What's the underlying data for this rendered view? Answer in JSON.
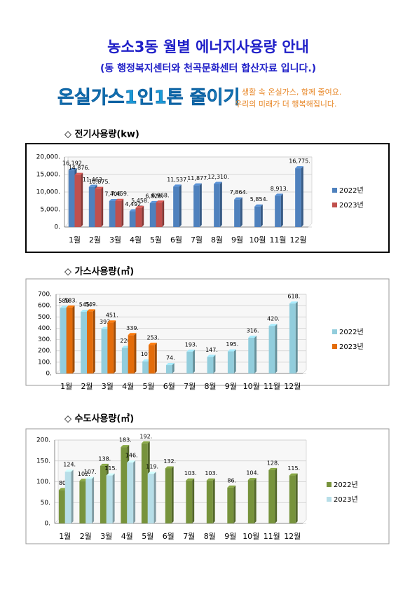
{
  "title": "농소3동 월별 에너지사용량 안내",
  "subtitle": "(동 행정복지센터와 천곡문화센터 합산자료 입니다.)",
  "banner": {
    "slogan": "온실가스1인1톤 줄이기",
    "line1": "생활 속 온실가스, 함께 줄여요.",
    "line2": "우리의 미래가 더 행복해집니다."
  },
  "chart_data": [
    {
      "type": "bar",
      "title": "◇ 전기사용량(kw)",
      "grid": true,
      "legend": "right",
      "categories": [
        "1월",
        "2월",
        "3월",
        "4월",
        "5월",
        "6월",
        "7월",
        "8월",
        "9월",
        "10월",
        "11월",
        "12월"
      ],
      "ylim": [
        0,
        20000
      ],
      "yticks": [
        {
          "value": 0,
          "label": "0."
        },
        {
          "value": 5000,
          "label": "5,000."
        },
        {
          "value": 10000,
          "label": "10,000."
        },
        {
          "value": 15000,
          "label": "15,000."
        },
        {
          "value": 20000,
          "label": "20,000."
        }
      ],
      "series": [
        {
          "name": "2022년",
          "color": "#4f81bd",
          "values": [
            16192,
            11463,
            7406,
            4492,
            6826,
            11537,
            11877,
            12310,
            7864,
            5854,
            8913,
            16775
          ],
          "value_labels": [
            "16,192.",
            "11,463.",
            "7,406.",
            "4,492.",
            "6,826.",
            "11,537.",
            "11,877.",
            "12,310.",
            "7,864.",
            "5,854.",
            "8,913.",
            "16,775."
          ]
        },
        {
          "name": "2023년",
          "color": "#c0504d",
          "values": [
            14876,
            10875,
            7459,
            5458,
            6968,
            null,
            null,
            null,
            null,
            null,
            null,
            null
          ],
          "value_labels": [
            "14,876.",
            "10,875.",
            "7,459.",
            "5,458.",
            "6,968.",
            null,
            null,
            null,
            null,
            null,
            null,
            null
          ]
        }
      ]
    },
    {
      "type": "bar",
      "title": "◇ 가스사용량(㎥)",
      "grid": true,
      "legend": "right",
      "categories": [
        "1월",
        "2월",
        "3월",
        "4월",
        "5월",
        "6월",
        "7월",
        "8월",
        "9월",
        "10월",
        "11월",
        "12월"
      ],
      "ylim": [
        0,
        700
      ],
      "yticks": [
        {
          "value": 0,
          "label": "0."
        },
        {
          "value": 100,
          "label": "100."
        },
        {
          "value": 200,
          "label": "200."
        },
        {
          "value": 300,
          "label": "300."
        },
        {
          "value": 400,
          "label": "400."
        },
        {
          "value": 500,
          "label": "500."
        },
        {
          "value": 600,
          "label": "600."
        },
        {
          "value": 700,
          "label": "700."
        }
      ],
      "series": [
        {
          "name": "2022년",
          "color": "#92cddc",
          "values": [
            580,
            545,
            393,
            226,
            107,
            74,
            193,
            147,
            195,
            316,
            420,
            618
          ],
          "value_labels": [
            "580.",
            "545.",
            "393.",
            "226.",
            "107.",
            "74.",
            "193.",
            "147.",
            "195.",
            "316.",
            "420.",
            "618."
          ]
        },
        {
          "name": "2023년",
          "color": "#e36c0a",
          "values": [
            583,
            549,
            451,
            339,
            253,
            null,
            null,
            null,
            null,
            null,
            null,
            null
          ],
          "value_labels": [
            "583.",
            "549.",
            "451.",
            "339.",
            "253.",
            null,
            null,
            null,
            null,
            null,
            null,
            null
          ]
        }
      ]
    },
    {
      "type": "bar",
      "title": "◇ 수도사용량(㎥)",
      "grid": true,
      "legend": "right",
      "categories": [
        "1월",
        "2월",
        "3월",
        "4월",
        "5월",
        "6월",
        "7월",
        "8월",
        "9월",
        "10월",
        "11월",
        "12월"
      ],
      "ylim": [
        0,
        200
      ],
      "yticks": [
        {
          "value": 0,
          "label": "0."
        },
        {
          "value": 50,
          "label": "50."
        },
        {
          "value": 100,
          "label": "100."
        },
        {
          "value": 150,
          "label": "150."
        },
        {
          "value": 200,
          "label": "200."
        }
      ],
      "series": [
        {
          "name": "2022년",
          "color": "#77933c",
          "values": [
            80,
            102,
            138,
            183,
            192,
            132,
            103,
            103,
            86,
            104,
            128,
            115
          ],
          "value_labels": [
            "80.",
            "102.",
            "138.",
            "183.",
            "192.",
            "132.",
            "103.",
            "103.",
            "86.",
            "104.",
            "128.",
            "115."
          ]
        },
        {
          "name": "2023년",
          "color": "#b7dee8",
          "values": [
            124,
            107,
            115,
            146,
            119,
            null,
            null,
            null,
            null,
            null,
            null,
            null
          ],
          "value_labels": [
            "124.",
            "107.",
            "115.",
            "146.",
            "119.",
            null,
            null,
            null,
            null,
            null,
            null,
            null
          ]
        }
      ]
    }
  ]
}
